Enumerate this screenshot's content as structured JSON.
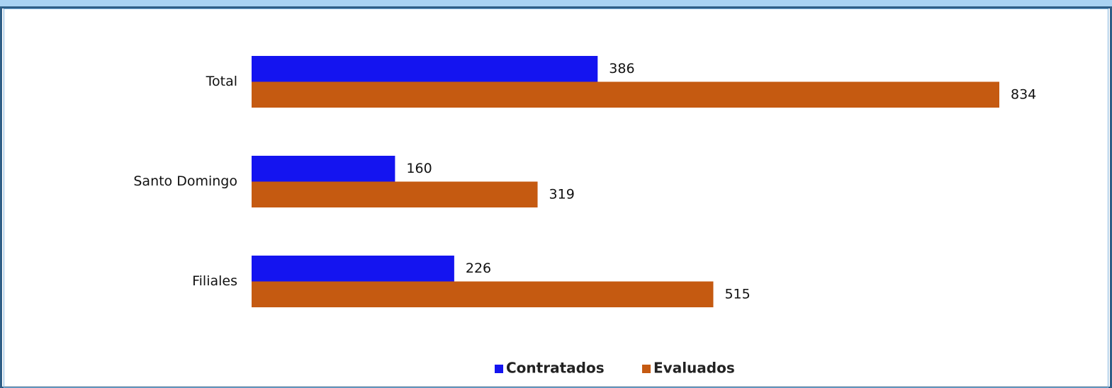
{
  "chart_data": {
    "type": "hbar",
    "categories": [
      "Total",
      "Santo Domingo",
      "Filiales"
    ],
    "series": [
      {
        "name": "Contratados",
        "color": "#1414f0",
        "values": [
          386,
          160,
          226
        ]
      },
      {
        "name": "Evaluados",
        "color": "#c55a11",
        "values": [
          834,
          319,
          515
        ]
      }
    ],
    "legend": "bottom"
  }
}
